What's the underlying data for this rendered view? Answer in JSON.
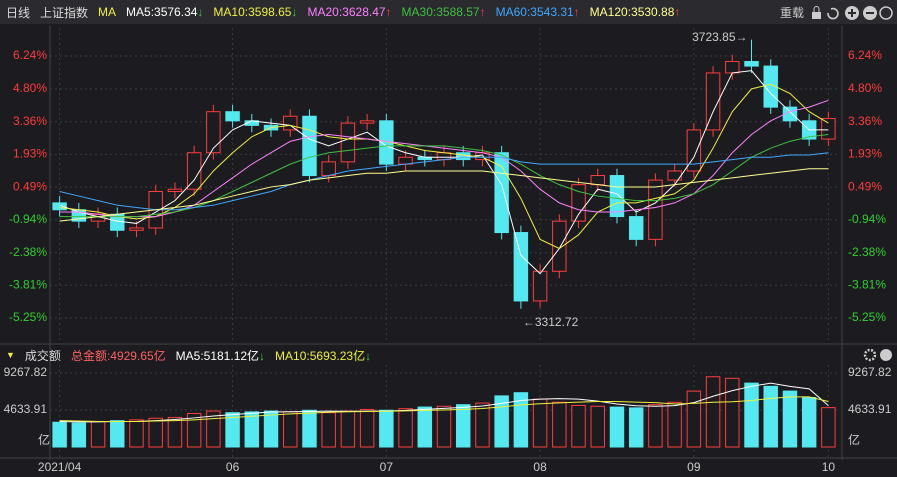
{
  "toolbar": {
    "period": "日线",
    "index": "上证指数",
    "ma": "MA",
    "reload": "重载"
  },
  "chart_data": [
    {
      "type": "candlestick",
      "up_color": "#ff3c3c",
      "down_color": "#54e8f0",
      "ylim": [
        -6.3,
        7.47
      ],
      "yticks": [
        {
          "value": 6.24,
          "label": "6.24%"
        },
        {
          "value": 4.8,
          "label": "4.80%"
        },
        {
          "value": 3.36,
          "label": "3.36%"
        },
        {
          "value": 1.93,
          "label": "1.93%"
        },
        {
          "value": 0.49,
          "label": "0.49%"
        },
        {
          "value": -0.94,
          "label": "-0.94%"
        },
        {
          "value": -2.38,
          "label": "-2.38%"
        },
        {
          "value": -3.81,
          "label": "-3.81%"
        },
        {
          "value": -5.25,
          "label": "-5.25%"
        }
      ],
      "grid": true,
      "high_label": "3723.85→",
      "low_label": "←3312.72",
      "open": [
        -0.2,
        -0.5,
        -1.0,
        -0.7,
        -1.4,
        -1.3,
        0.3,
        0.4,
        2.0,
        3.8,
        3.4,
        3.2,
        3.0,
        3.6,
        1.0,
        1.6,
        3.3,
        3.4,
        1.5,
        1.8,
        1.7,
        2.0,
        1.7,
        2.0,
        -1.5,
        -4.5,
        -3.2,
        -1.0,
        0.6,
        1.0,
        -0.8,
        -1.8,
        0.8,
        1.2,
        3.0,
        5.5,
        6.0,
        5.8,
        4.0,
        3.4,
        2.6
      ],
      "high": [
        0.1,
        -0.2,
        -0.4,
        -0.4,
        -1.0,
        0.6,
        0.7,
        2.3,
        4.1,
        4.1,
        3.7,
        3.5,
        3.9,
        3.9,
        1.9,
        3.6,
        3.7,
        3.7,
        2.1,
        2.1,
        2.3,
        2.3,
        2.3,
        2.3,
        -1.2,
        -2.9,
        -0.7,
        0.9,
        1.3,
        1.3,
        -0.5,
        1.1,
        1.5,
        3.3,
        5.8,
        6.3,
        6.96,
        6.1,
        4.3,
        3.7,
        3.8
      ],
      "low": [
        -0.8,
        -1.3,
        -1.3,
        -1.7,
        -1.7,
        -1.6,
        0.0,
        0.1,
        1.7,
        3.1,
        2.9,
        2.7,
        2.7,
        0.7,
        0.7,
        1.3,
        3.0,
        1.2,
        1.2,
        1.4,
        1.4,
        1.4,
        1.4,
        -1.8,
        -4.84,
        -4.8,
        -3.5,
        -1.3,
        0.3,
        -1.1,
        -2.1,
        -2.1,
        0.5,
        0.9,
        2.7,
        5.2,
        5.5,
        3.7,
        3.1,
        2.3,
        2.3
      ],
      "close": [
        -0.5,
        -1.0,
        -0.7,
        -1.4,
        -1.3,
        0.3,
        0.4,
        2.0,
        3.8,
        3.4,
        3.2,
        3.0,
        3.6,
        1.0,
        1.6,
        3.3,
        3.4,
        1.5,
        1.8,
        1.7,
        2.0,
        1.7,
        2.0,
        -1.5,
        -4.5,
        -3.2,
        -1.0,
        0.6,
        1.0,
        -0.8,
        -1.8,
        0.8,
        1.2,
        3.0,
        5.5,
        6.0,
        5.8,
        4.0,
        3.4,
        2.6,
        3.5
      ],
      "series": [
        {
          "name": "MA5:3576.34",
          "arrow": "↓",
          "color": "#ffffff",
          "values": [
            -0.3,
            -0.6,
            -0.8,
            -1.0,
            -1.1,
            -0.6,
            -0.1,
            0.8,
            2.2,
            3.0,
            3.4,
            3.3,
            3.2,
            2.6,
            2.3,
            2.6,
            2.9,
            2.3,
            2.0,
            1.8,
            1.8,
            1.8,
            1.9,
            0.6,
            -2.5,
            -3.3,
            -2.2,
            -0.7,
            0.4,
            0.2,
            -0.6,
            -0.2,
            0.6,
            1.8,
            3.8,
            5.5,
            5.6,
            4.6,
            3.8,
            3.0,
            3.0
          ]
        },
        {
          "name": "MA10:3598.65",
          "arrow": "↓",
          "color": "#f0f040",
          "values": [
            -0.4,
            -0.5,
            -0.6,
            -0.8,
            -0.9,
            -0.8,
            -0.4,
            0.2,
            1.2,
            2.0,
            2.7,
            3.1,
            3.2,
            3.0,
            2.7,
            2.6,
            2.6,
            2.5,
            2.3,
            2.1,
            2.0,
            1.9,
            1.8,
            1.4,
            0.0,
            -1.8,
            -2.2,
            -1.6,
            -0.6,
            -0.2,
            -0.2,
            0.0,
            0.2,
            0.8,
            2.2,
            3.8,
            4.8,
            5.0,
            4.6,
            3.8,
            3.3
          ]
        },
        {
          "name": "MA20:3628.47",
          "arrow": "↑",
          "color": "#ff80ff",
          "values": [
            -0.6,
            -0.6,
            -0.7,
            -0.8,
            -0.8,
            -0.8,
            -0.6,
            -0.3,
            0.3,
            0.9,
            1.5,
            2.0,
            2.5,
            2.7,
            2.8,
            2.7,
            2.6,
            2.5,
            2.4,
            2.3,
            2.2,
            2.1,
            2.0,
            1.8,
            1.2,
            0.4,
            -0.2,
            -0.5,
            -0.6,
            -0.6,
            -0.5,
            -0.4,
            -0.2,
            0.2,
            1.0,
            2.0,
            2.8,
            3.4,
            3.8,
            4.0,
            4.3
          ]
        },
        {
          "name": "MA30:3588.57",
          "arrow": "↑",
          "color": "#40c040",
          "values": [
            -0.8,
            -0.8,
            -0.8,
            -0.8,
            -0.8,
            -0.7,
            -0.6,
            -0.4,
            -0.1,
            0.3,
            0.7,
            1.1,
            1.5,
            1.8,
            2.0,
            2.1,
            2.2,
            2.3,
            2.3,
            2.3,
            2.3,
            2.2,
            2.1,
            1.9,
            1.5,
            1.0,
            0.6,
            0.3,
            0.1,
            0.0,
            -0.1,
            -0.1,
            0.0,
            0.2,
            0.6,
            1.2,
            1.8,
            2.2,
            2.5,
            2.7,
            2.8
          ]
        },
        {
          "name": "MA60:3543.31",
          "arrow": "↑",
          "color": "#40a8ff",
          "values": [
            0.3,
            0.1,
            -0.1,
            -0.3,
            -0.4,
            -0.5,
            -0.5,
            -0.4,
            -0.3,
            -0.1,
            0.1,
            0.3,
            0.6,
            0.8,
            1.0,
            1.2,
            1.3,
            1.4,
            1.5,
            1.6,
            1.7,
            1.8,
            1.8,
            1.8,
            1.6,
            1.5,
            1.5,
            1.5,
            1.5,
            1.5,
            1.5,
            1.5,
            1.5,
            1.5,
            1.6,
            1.7,
            1.8,
            1.8,
            1.9,
            1.9,
            2.0
          ]
        },
        {
          "name": "MA120:3530.88",
          "arrow": "↑",
          "color": "#ffff90",
          "values": [
            -1.0,
            -0.9,
            -0.8,
            -0.7,
            -0.6,
            -0.5,
            -0.4,
            -0.3,
            -0.1,
            0.1,
            0.3,
            0.5,
            0.6,
            0.8,
            0.9,
            1.0,
            1.1,
            1.1,
            1.2,
            1.2,
            1.2,
            1.2,
            1.2,
            1.1,
            1.0,
            0.9,
            0.8,
            0.7,
            0.6,
            0.5,
            0.5,
            0.5,
            0.6,
            0.7,
            0.8,
            0.9,
            1.0,
            1.1,
            1.2,
            1.3,
            1.3
          ]
        }
      ]
    },
    {
      "type": "bar",
      "title": "成交额",
      "total": "总金额:4929.65亿",
      "unit": "亿",
      "categories": [
        "2021/04",
        null,
        null,
        null,
        null,
        null,
        null,
        null,
        null,
        "06",
        null,
        null,
        null,
        null,
        null,
        null,
        null,
        "07",
        null,
        null,
        null,
        null,
        null,
        null,
        null,
        "08",
        null,
        null,
        null,
        null,
        null,
        null,
        null,
        "09",
        null,
        null,
        null,
        null,
        null,
        null,
        "10"
      ],
      "values": [
        3100,
        3000,
        3200,
        3300,
        3400,
        3600,
        3700,
        4200,
        4500,
        4300,
        4400,
        4500,
        4400,
        4600,
        4300,
        4500,
        4700,
        4600,
        4800,
        5000,
        5100,
        5300,
        5500,
        6400,
        6800,
        6000,
        5600,
        5200,
        5100,
        5000,
        4900,
        5300,
        5600,
        7000,
        8800,
        8600,
        8000,
        7600,
        7000,
        6200,
        4929.65
      ],
      "ylim": [
        0,
        10270
      ],
      "yticks": [
        4633.91,
        9267.82
      ],
      "series": [
        {
          "name": "MA5:5181.12亿",
          "arrow": "↓",
          "color": "#ffffff",
          "values": [
            3200,
            3150,
            3150,
            3200,
            3200,
            3300,
            3440,
            3640,
            3880,
            4060,
            4220,
            4380,
            4420,
            4440,
            4500,
            4460,
            4500,
            4500,
            4580,
            4720,
            4840,
            4960,
            5140,
            5460,
            5820,
            6000,
            6060,
            6000,
            5740,
            5380,
            5160,
            5100,
            5180,
            5560,
            6360,
            7060,
            7600,
            8000,
            7600,
            7280,
            5181.12
          ]
        },
        {
          "name": "MA10:5693.23亿",
          "arrow": "↓",
          "color": "#f0f040",
          "values": [
            3300,
            3250,
            3200,
            3200,
            3200,
            3250,
            3300,
            3400,
            3550,
            3700,
            3850,
            4000,
            4150,
            4250,
            4350,
            4420,
            4450,
            4480,
            4520,
            4580,
            4640,
            4720,
            4820,
            5020,
            5270,
            5420,
            5520,
            5620,
            5700,
            5700,
            5620,
            5560,
            5380,
            5460,
            5600,
            5670,
            5830,
            6070,
            6280,
            6280,
            5693.23
          ]
        }
      ]
    }
  ]
}
